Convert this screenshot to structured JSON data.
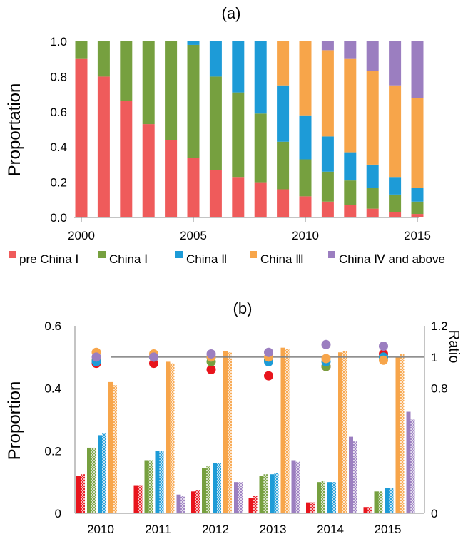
{
  "colors": {
    "pre_china_1": "#EF5B5B",
    "china_1": "#76A03F",
    "china_2": "#1D9BD7",
    "china_3": "#F7A54A",
    "china_4": "#9B7EC0",
    "bar_b_pre": "#E8141C",
    "axis": "#888888",
    "grid_ratio_line": "#808080"
  },
  "chart_data": [
    {
      "type": "bar",
      "stacked": true,
      "panel_label": "(a)",
      "ylabel": "Proportation",
      "xlabel": "",
      "ylim": [
        0,
        1
      ],
      "yticks": [
        "0.0",
        "0.2",
        "0.4",
        "0.6",
        "0.8",
        "1.0"
      ],
      "xticks": [
        "2000",
        "2005",
        "2010",
        "2015"
      ],
      "legend_position": "bottom",
      "categories": [
        2000,
        2001,
        2002,
        2003,
        2004,
        2005,
        2006,
        2007,
        2008,
        2009,
        2010,
        2011,
        2012,
        2013,
        2014,
        2015
      ],
      "series": [
        {
          "name": "pre China Ⅰ",
          "color_key": "pre_china_1",
          "values": [
            0.9,
            0.8,
            0.66,
            0.53,
            0.44,
            0.34,
            0.27,
            0.23,
            0.2,
            0.16,
            0.12,
            0.09,
            0.07,
            0.05,
            0.03,
            0.02
          ]
        },
        {
          "name": "China Ⅰ",
          "color_key": "china_1",
          "values": [
            0.1,
            0.2,
            0.34,
            0.47,
            0.56,
            0.64,
            0.53,
            0.48,
            0.39,
            0.27,
            0.21,
            0.17,
            0.14,
            0.12,
            0.1,
            0.07
          ]
        },
        {
          "name": "China Ⅱ",
          "color_key": "china_2",
          "values": [
            0.0,
            0.0,
            0.0,
            0.0,
            0.0,
            0.02,
            0.2,
            0.29,
            0.41,
            0.32,
            0.25,
            0.2,
            0.16,
            0.13,
            0.1,
            0.08
          ]
        },
        {
          "name": "China Ⅲ",
          "color_key": "china_3",
          "values": [
            0.0,
            0.0,
            0.0,
            0.0,
            0.0,
            0.0,
            0.0,
            0.0,
            0.0,
            0.25,
            0.42,
            0.49,
            0.53,
            0.53,
            0.52,
            0.51
          ]
        },
        {
          "name": "China Ⅳ and above",
          "color_key": "china_4",
          "values": [
            0.0,
            0.0,
            0.0,
            0.0,
            0.0,
            0.0,
            0.0,
            0.0,
            0.0,
            0.0,
            0.0,
            0.05,
            0.1,
            0.17,
            0.25,
            0.32
          ]
        }
      ]
    },
    {
      "type": "bar",
      "panel_label": "(b)",
      "ylabel": "Proportion",
      "y2label": "Ratio",
      "ylim": [
        0,
        0.6
      ],
      "y2lim": [
        0,
        1.2
      ],
      "yticks": [
        "0",
        "0.2",
        "0.4",
        "0.6"
      ],
      "y2ticks": [
        "0",
        "0.8",
        "1",
        "1.2"
      ],
      "categories": [
        "2010",
        "2011",
        "2012",
        "2013",
        "2014",
        "2015"
      ],
      "reference_line_ratio": 1.0,
      "series": [
        {
          "color_key": "bar_b_pre",
          "solid": [
            0.12,
            0.09,
            0.07,
            0.05,
            0.035,
            0.02
          ],
          "hatched": [
            0.125,
            0.09,
            0.075,
            0.055,
            0.035,
            0.02
          ],
          "ratio": [
            0.96,
            0.96,
            0.92,
            0.88,
            0.94,
            1.02
          ]
        },
        {
          "color_key": "china_1",
          "solid": [
            0.21,
            0.17,
            0.145,
            0.12,
            0.1,
            0.07
          ],
          "hatched": [
            0.21,
            0.17,
            0.15,
            0.125,
            0.105,
            0.07
          ],
          "ratio": [
            0.98,
            1.0,
            0.97,
            0.98,
            0.94,
            1.0
          ]
        },
        {
          "color_key": "china_2",
          "solid": [
            0.25,
            0.2,
            0.16,
            0.125,
            0.1,
            0.08
          ],
          "hatched": [
            0.255,
            0.2,
            0.16,
            0.13,
            0.1,
            0.08
          ],
          "ratio": [
            0.97,
            1.0,
            1.0,
            0.97,
            0.97,
            1.0
          ]
        },
        {
          "color_key": "china_3",
          "solid": [
            0.42,
            0.485,
            0.52,
            0.53,
            0.515,
            0.5
          ],
          "hatched": [
            0.41,
            0.48,
            0.515,
            0.525,
            0.52,
            0.51
          ],
          "ratio": [
            1.03,
            1.02,
            1.0,
            1.0,
            0.99,
            0.98
          ]
        },
        {
          "color_key": "china_4",
          "solid": [
            null,
            0.06,
            0.1,
            0.17,
            0.245,
            0.325
          ],
          "hatched": [
            null,
            0.055,
            0.1,
            0.165,
            0.23,
            0.3
          ],
          "ratio": [
            1.0,
            1.0,
            1.02,
            1.03,
            1.08,
            1.07
          ]
        }
      ]
    }
  ]
}
